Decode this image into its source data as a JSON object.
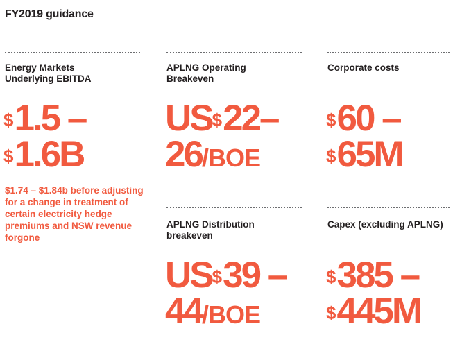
{
  "title": "FY2019 guidance",
  "colors": {
    "accent": "#f15a3f",
    "text": "#231f20",
    "rule": "#6d6e71"
  },
  "cards": {
    "energy_markets": {
      "label_lines": [
        "Energy Markets",
        "Underlying EBITDA"
      ],
      "value_line1": {
        "sup": "$",
        "num": "1.5 –"
      },
      "value_line2": {
        "sup": "$",
        "num": "1.6B"
      },
      "note": "$1.74 – $1.84b before adjusting for a change in treatment of certain electricity hedge premiums and NSW revenue forgone"
    },
    "aplng_operating": {
      "label_lines": [
        "APLNG Operating",
        "Breakeven"
      ],
      "value_line1": {
        "prefix": "US",
        "sup": "$",
        "num": "22–"
      },
      "value_line2": {
        "num": "26",
        "unit": "/BOE"
      }
    },
    "corporate_costs": {
      "label_lines": [
        "Corporate costs"
      ],
      "value_line1": {
        "sup": "$",
        "num": "60 –"
      },
      "value_line2": {
        "sup": "$",
        "num": "65M"
      }
    },
    "aplng_distribution": {
      "label_lines": [
        "APLNG Distribution",
        "breakeven"
      ],
      "value_line1": {
        "prefix": "US",
        "sup": "$",
        "num": "39 –"
      },
      "value_line2": {
        "num": "44",
        "unit": "/BOE"
      }
    },
    "capex": {
      "label_lines": [
        "Capex (excluding APLNG)"
      ],
      "value_line1": {
        "sup": "$",
        "num": "385 –"
      },
      "value_line2": {
        "sup": "$",
        "num": "445M"
      }
    }
  }
}
